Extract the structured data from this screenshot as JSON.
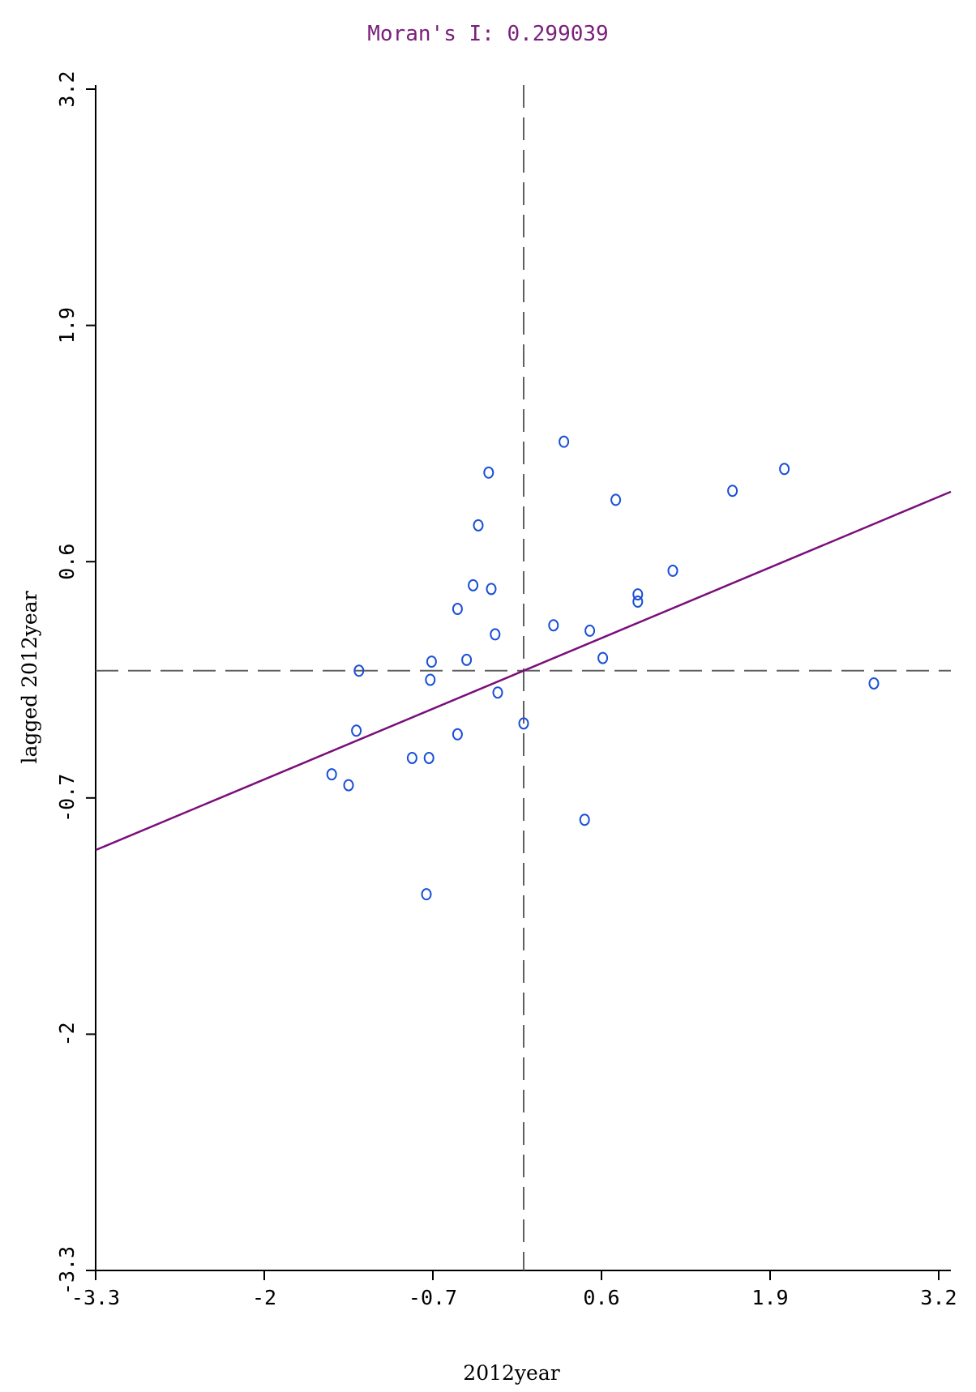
{
  "chart_data": {
    "type": "scatter",
    "title": "Moran's I: 0.299039",
    "xlabel": "2012year",
    "ylabel": "lagged 2012year",
    "xlim": [
      -3.3,
      3.2
    ],
    "ylim": [
      -3.3,
      3.2
    ],
    "xticks": [
      -3.3,
      -2,
      -0.7,
      0.6,
      1.9,
      3.2
    ],
    "yticks": [
      -3.3,
      -2,
      -0.7,
      0.6,
      1.9,
      3.2
    ],
    "x_tick_labels": [
      "-3.3",
      "-2",
      "-0.7",
      "0.6",
      "1.9",
      "3.2"
    ],
    "y_tick_labels": [
      "-3.3",
      "-2",
      "-0.7",
      "0.6",
      "1.9",
      "3.2"
    ],
    "mean_lines": {
      "x": 0.0,
      "y": 0.0
    },
    "regression": {
      "slope": 0.299039,
      "intercept": 0.0
    },
    "grid": false,
    "colors": {
      "title": "#7a1f7a",
      "points": "#1a4fd6",
      "regression": "#7a0f7a",
      "mean_lines": "#606060",
      "axes": "#000000"
    },
    "points": [
      [
        -1.27,
        0.0
      ],
      [
        -1.29,
        -0.33
      ],
      [
        -1.48,
        -0.57
      ],
      [
        -1.35,
        -0.63
      ],
      [
        -0.86,
        -0.48
      ],
      [
        -0.73,
        -0.48
      ],
      [
        -0.72,
        -0.05
      ],
      [
        -0.71,
        0.05
      ],
      [
        -0.51,
        0.34
      ],
      [
        -0.39,
        0.47
      ],
      [
        -0.44,
        0.06
      ],
      [
        -0.51,
        -0.35
      ],
      [
        -0.35,
        0.8
      ],
      [
        -0.27,
        1.09
      ],
      [
        -0.25,
        0.45
      ],
      [
        -0.22,
        0.2
      ],
      [
        -0.2,
        -0.12
      ],
      [
        -0.75,
        -1.23
      ],
      [
        0.0,
        -0.29
      ],
      [
        0.23,
        0.25
      ],
      [
        0.31,
        1.26
      ],
      [
        0.47,
        -0.82
      ],
      [
        0.51,
        0.22
      ],
      [
        0.61,
        0.07
      ],
      [
        0.71,
        0.94
      ],
      [
        0.88,
        0.42
      ],
      [
        0.88,
        0.38
      ],
      [
        1.15,
        0.55
      ],
      [
        1.61,
        0.99
      ],
      [
        2.01,
        1.11
      ],
      [
        2.7,
        -0.07
      ]
    ]
  }
}
